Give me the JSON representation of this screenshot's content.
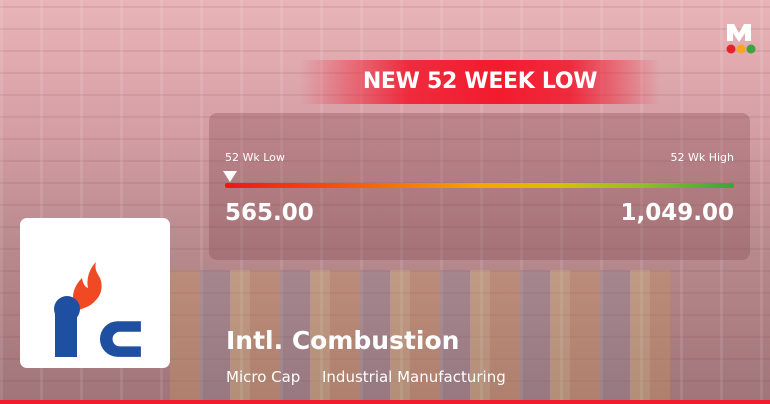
{
  "banner": {
    "title": "NEW 52 WEEK LOW"
  },
  "range": {
    "low_label": "52 Wk Low",
    "high_label": "52 Wk High",
    "low_value": "565.00",
    "high_value": "1,049.00",
    "marker_position_pct": 0
  },
  "company": {
    "name": "Intl. Combustion",
    "cap": "Micro Cap",
    "sector": "Industrial Manufacturing",
    "logo_text": "ic"
  },
  "brand": {
    "logo_letter": "M",
    "dot_colors": [
      "#e8202a",
      "#f5a623",
      "#3aa53a"
    ]
  },
  "colors": {
    "accent": "#f21b2d"
  }
}
